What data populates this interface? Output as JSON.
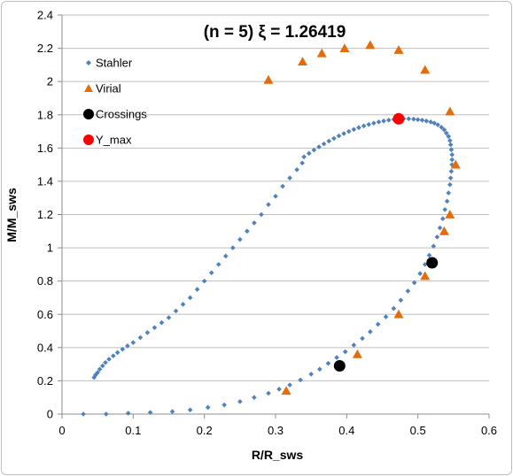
{
  "chart_data": {
    "type": "scatter",
    "title": "(n = 5)   ξ = 1.26419",
    "xlabel": "R/R_sws",
    "ylabel": "M/M_sws",
    "xlim": [
      0,
      0.6
    ],
    "ylim": [
      0,
      2.4
    ],
    "xticks": [
      "0",
      "0.1",
      "0.2",
      "0.3",
      "0.4",
      "0.5",
      "0.6"
    ],
    "yticks": [
      "0",
      "0.2",
      "0.4",
      "0.6",
      "0.8",
      "1",
      "1.2",
      "1.4",
      "1.6",
      "1.8",
      "2",
      "2.2",
      "2.4"
    ],
    "grid": "horizontal",
    "legend_position": "top-left",
    "series": [
      {
        "name": "Stahler",
        "marker": "diamond",
        "color": "#4f81bd",
        "x": [
          0.03,
          0.062,
          0.093,
          0.124,
          0.155,
          0.18,
          0.205,
          0.228,
          0.25,
          0.27,
          0.29,
          0.305,
          0.32,
          0.335,
          0.35,
          0.362,
          0.374,
          0.386,
          0.398,
          0.41,
          0.422,
          0.433,
          0.444,
          0.455,
          0.466,
          0.476,
          0.486,
          0.495,
          0.503,
          0.51,
          0.516,
          0.522,
          0.527,
          0.531,
          0.535,
          0.538,
          0.541,
          0.543,
          0.545,
          0.546,
          0.547,
          0.548,
          0.548,
          0.548,
          0.547,
          0.546,
          0.545,
          0.543,
          0.54,
          0.537,
          0.533,
          0.528,
          0.523,
          0.518,
          0.512,
          0.506,
          0.5,
          0.494,
          0.487,
          0.48,
          0.473,
          0.466,
          0.459,
          0.452,
          0.445,
          0.438,
          0.431,
          0.424,
          0.417,
          0.41,
          0.403,
          0.396,
          0.389,
          0.382,
          0.375,
          0.368,
          0.361,
          0.354,
          0.347,
          0.34,
          0.3375,
          0.33,
          0.32,
          0.31,
          0.3,
          0.29,
          0.28,
          0.27,
          0.26,
          0.25,
          0.24,
          0.23,
          0.22,
          0.21,
          0.2,
          0.19,
          0.18,
          0.17,
          0.16,
          0.15,
          0.14,
          0.13,
          0.12,
          0.11,
          0.1,
          0.092,
          0.085,
          0.078,
          0.072,
          0.066,
          0.061,
          0.057,
          0.053,
          0.05,
          0.047,
          0.045
        ],
        "y": [
          0.0,
          0.0,
          0.005,
          0.01,
          0.015,
          0.025,
          0.04,
          0.055,
          0.075,
          0.1,
          0.125,
          0.15,
          0.175,
          0.205,
          0.24,
          0.27,
          0.305,
          0.34,
          0.375,
          0.415,
          0.455,
          0.495,
          0.54,
          0.585,
          0.635,
          0.685,
          0.74,
          0.79,
          0.845,
          0.9,
          0.955,
          1.01,
          1.065,
          1.12,
          1.175,
          1.23,
          1.28,
          1.33,
          1.38,
          1.42,
          1.46,
          1.5,
          1.53,
          1.56,
          1.59,
          1.62,
          1.645,
          1.67,
          1.69,
          1.71,
          1.725,
          1.74,
          1.75,
          1.757,
          1.763,
          1.768,
          1.771,
          1.774,
          1.776,
          1.776,
          1.775,
          1.772,
          1.768,
          1.763,
          1.757,
          1.75,
          1.742,
          1.733,
          1.723,
          1.712,
          1.7,
          1.687,
          1.673,
          1.658,
          1.642,
          1.625,
          1.607,
          1.588,
          1.568,
          1.547,
          1.51,
          1.47,
          1.42,
          1.37,
          1.31,
          1.26,
          1.2,
          1.15,
          1.1,
          1.05,
          1.0,
          0.95,
          0.9,
          0.85,
          0.8,
          0.75,
          0.7,
          0.66,
          0.62,
          0.58,
          0.55,
          0.52,
          0.49,
          0.46,
          0.43,
          0.41,
          0.39,
          0.37,
          0.35,
          0.33,
          0.31,
          0.29,
          0.27,
          0.25,
          0.235,
          0.22
        ]
      },
      {
        "name": "Virial",
        "marker": "triangle",
        "color": "#e46c0a",
        "x": [
          0.315,
          0.415,
          0.473,
          0.51,
          0.537,
          0.545,
          0.553,
          0.545,
          0.51,
          0.473,
          0.433,
          0.397,
          0.365,
          0.338,
          0.29
        ],
        "y": [
          0.14,
          0.36,
          0.6,
          0.83,
          1.1,
          1.2,
          1.5,
          1.82,
          2.07,
          2.19,
          2.22,
          2.2,
          2.17,
          2.12,
          2.01
        ]
      },
      {
        "name": "Crossings",
        "marker": "circle",
        "color": "#000000",
        "x": [
          0.39,
          0.52
        ],
        "y": [
          0.29,
          0.91
        ]
      },
      {
        "name": "Y_max",
        "marker": "circle",
        "color": "#ff0000",
        "x": [
          0.473
        ],
        "y": [
          1.776
        ]
      }
    ]
  }
}
